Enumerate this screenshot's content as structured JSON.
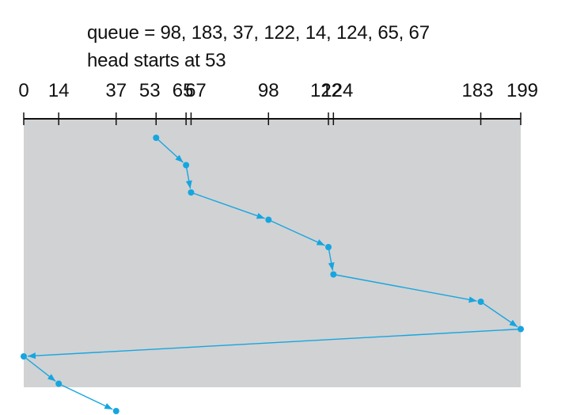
{
  "header": {
    "queue_text": "queue = 98, 183, 37, 122, 14, 124, 65, 67",
    "head_text": "head starts at 53"
  },
  "axis": {
    "min": 0,
    "max": 199,
    "ticks": [
      {
        "value": 0,
        "label": "0"
      },
      {
        "value": 14,
        "label": "14"
      },
      {
        "value": 37,
        "label": "37"
      },
      {
        "value": 53,
        "label": "53"
      },
      {
        "value": 65,
        "label": "65"
      },
      {
        "value": 67,
        "label": "67"
      },
      {
        "value": 98,
        "label": "98"
      },
      {
        "value": 122,
        "label": "122"
      },
      {
        "value": 124,
        "label": "124"
      },
      {
        "value": 183,
        "label": "183"
      },
      {
        "value": 199,
        "label": "199"
      }
    ]
  },
  "path": [
    53,
    65,
    67,
    98,
    122,
    124,
    183,
    199,
    0,
    14,
    37
  ],
  "colors": {
    "panel": "#d1d2d4",
    "path": "#16a6df",
    "axis": "#111111",
    "text": "#111111"
  }
}
